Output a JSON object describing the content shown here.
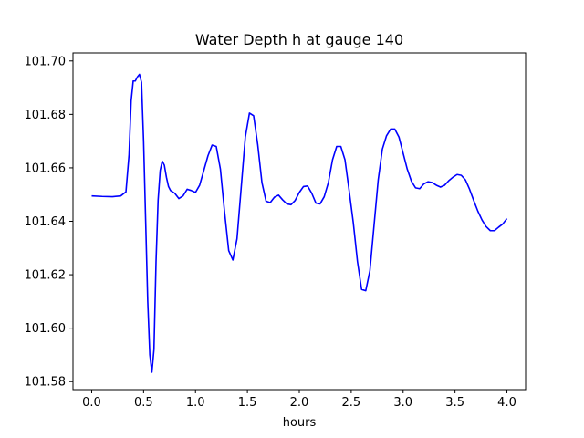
{
  "chart_data": {
    "type": "line",
    "title": "Water Depth h at gauge 140",
    "xlabel": "hours",
    "ylabel": "",
    "xlim": [
      -0.18,
      4.18
    ],
    "ylim": [
      101.577,
      101.703
    ],
    "xticks": [
      0.0,
      0.5,
      1.0,
      1.5,
      2.0,
      2.5,
      3.0,
      3.5,
      4.0
    ],
    "xtick_labels": [
      "0.0",
      "0.5",
      "1.0",
      "1.5",
      "2.0",
      "2.5",
      "3.0",
      "3.5",
      "4.0"
    ],
    "yticks": [
      101.58,
      101.6,
      101.62,
      101.64,
      101.66,
      101.68,
      101.7
    ],
    "ytick_labels": [
      "101.58",
      "101.60",
      "101.62",
      "101.64",
      "101.66",
      "101.68",
      "101.70"
    ],
    "grid": false,
    "series": [
      {
        "color": "#0000ff",
        "x": [
          0.0,
          0.1,
          0.2,
          0.28,
          0.33,
          0.36,
          0.38,
          0.4,
          0.42,
          0.44,
          0.46,
          0.48,
          0.5,
          0.52,
          0.54,
          0.56,
          0.58,
          0.6,
          0.62,
          0.64,
          0.66,
          0.68,
          0.7,
          0.72,
          0.74,
          0.76,
          0.78,
          0.8,
          0.84,
          0.88,
          0.92,
          0.96,
          1.0,
          1.04,
          1.08,
          1.12,
          1.16,
          1.2,
          1.24,
          1.28,
          1.32,
          1.36,
          1.4,
          1.44,
          1.48,
          1.52,
          1.56,
          1.6,
          1.64,
          1.68,
          1.72,
          1.76,
          1.8,
          1.84,
          1.88,
          1.92,
          1.96,
          2.0,
          2.04,
          2.08,
          2.12,
          2.16,
          2.2,
          2.24,
          2.28,
          2.32,
          2.36,
          2.4,
          2.44,
          2.48,
          2.52,
          2.56,
          2.6,
          2.64,
          2.68,
          2.72,
          2.76,
          2.8,
          2.84,
          2.88,
          2.92,
          2.96,
          3.0,
          3.04,
          3.08,
          3.12,
          3.16,
          3.2,
          3.24,
          3.28,
          3.32,
          3.36,
          3.4,
          3.44,
          3.48,
          3.52,
          3.56,
          3.6,
          3.64,
          3.68,
          3.72,
          3.76,
          3.8,
          3.84,
          3.88,
          3.92,
          3.96,
          4.0
        ],
        "y": [
          101.6495,
          101.6493,
          101.6492,
          101.6495,
          101.651,
          101.665,
          101.685,
          101.6925,
          101.6925,
          101.694,
          101.695,
          101.692,
          101.67,
          101.64,
          101.61,
          101.59,
          101.5835,
          101.592,
          101.625,
          101.648,
          101.659,
          101.6625,
          101.661,
          101.6565,
          101.653,
          101.6515,
          101.651,
          101.6505,
          101.6485,
          101.6495,
          101.652,
          101.6515,
          101.6508,
          101.6535,
          101.659,
          101.6645,
          101.6685,
          101.668,
          101.6595,
          101.6435,
          101.629,
          101.6255,
          101.6335,
          101.6525,
          101.6715,
          101.6805,
          101.6795,
          101.6685,
          101.6545,
          101.6475,
          101.647,
          101.649,
          101.6498,
          101.648,
          101.6465,
          101.6462,
          101.6478,
          101.6508,
          101.653,
          101.6532,
          101.6505,
          101.6468,
          101.6465,
          101.6492,
          101.6545,
          101.663,
          101.668,
          101.668,
          101.663,
          101.6515,
          101.6395,
          101.625,
          101.6145,
          101.614,
          101.6215,
          101.6385,
          101.6555,
          101.667,
          101.672,
          101.6745,
          101.6745,
          101.6715,
          101.6655,
          101.6595,
          101.655,
          101.6525,
          101.6522,
          101.654,
          101.6548,
          101.6545,
          101.6535,
          101.6528,
          101.6535,
          101.6552,
          101.6565,
          101.6575,
          101.6572,
          101.6555,
          101.652,
          101.6478,
          101.6438,
          101.6405,
          101.638,
          101.6365,
          101.6365,
          101.6378,
          101.639,
          101.641
        ]
      }
    ]
  }
}
